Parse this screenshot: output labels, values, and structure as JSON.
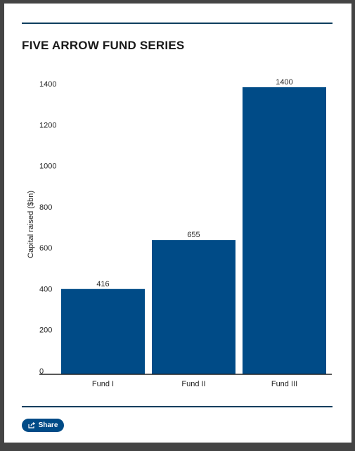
{
  "title": "FIVE ARROW FUND SERIES",
  "share": {
    "label": "Share",
    "icon": "share-icon"
  },
  "colors": {
    "accent": "#004b87",
    "rule": "#0e3e5e",
    "axis": "#222222",
    "text": "#222222",
    "background": "#ffffff"
  },
  "chart_data": {
    "type": "bar",
    "categories": [
      "Fund I",
      "Fund II",
      "Fund III"
    ],
    "values": [
      416,
      655,
      1400
    ],
    "data_labels": [
      "416",
      "655",
      "1400"
    ],
    "ylabel": "Capital raised ($bn)",
    "xlabel": "",
    "ylim": [
      0,
      1400
    ],
    "yticks": [
      0,
      200,
      400,
      600,
      800,
      1000,
      1200,
      1400
    ],
    "grid": false,
    "legend": "none",
    "bar_color": "#004b87"
  }
}
